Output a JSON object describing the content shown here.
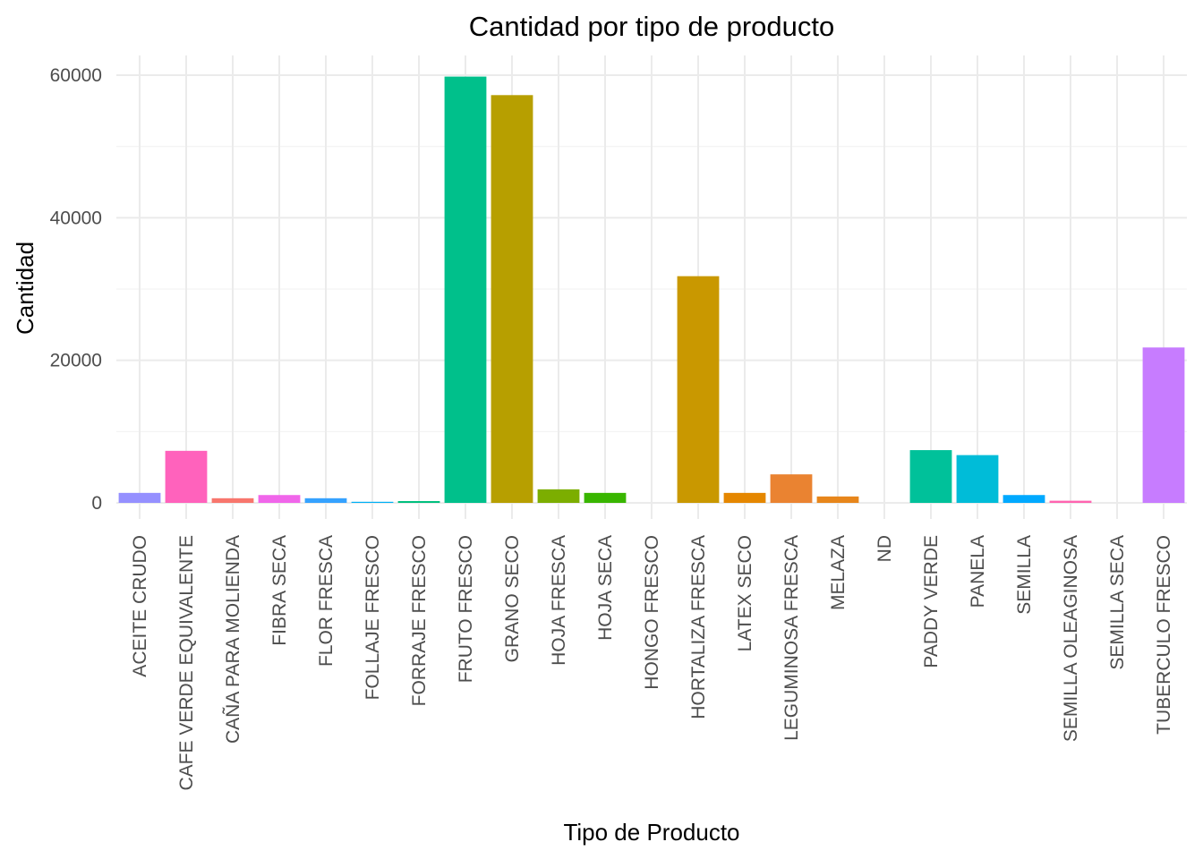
{
  "chart_data": {
    "type": "bar",
    "title": "Cantidad por tipo de producto",
    "xlabel": "Tipo de Producto",
    "ylabel": "Cantidad",
    "ylim": [
      -2500,
      62500
    ],
    "yticks": [
      0,
      20000,
      40000,
      60000
    ],
    "grid": true,
    "legend": "none",
    "categories": [
      "ACEITE CRUDO",
      "CAFE VERDE EQUIVALENTE",
      "CAÑA PARA MOLIENDA",
      "FIBRA SECA",
      "FLOR FRESCA",
      "FOLLAJE FRESCO",
      "FORRAJE FRESCO",
      "FRUTO FRESCO",
      "GRANO SECO",
      "HOJA FRESCA",
      "HOJA SECA",
      "HONGO FRESCO",
      "HORTALIZA FRESCA",
      "LATEX SECO",
      "LEGUMINOSA FRESCA",
      "MELAZA",
      "ND",
      "PADDY VERDE",
      "PANELA",
      "SEMILLA",
      "SEMILLA OLEAGINOSA",
      "SEMILLA SECA",
      "TUBERCULO FRESCO"
    ],
    "values": [
      1400,
      7300,
      650,
      1100,
      650,
      150,
      250,
      59800,
      57200,
      1900,
      1400,
      0,
      31800,
      1400,
      4000,
      900,
      0,
      7400,
      6700,
      1100,
      300,
      0,
      21800
    ],
    "colors": [
      "#9590FF",
      "#FF62BC",
      "#F8766D",
      "#F066EA",
      "#35A2FF",
      "#00B0F6",
      "#00BF7D",
      "#00C08B",
      "#B79F00",
      "#7CAE00",
      "#39B600",
      "#00C1AA",
      "#C99800",
      "#E58700",
      "#EA8331",
      "#E7861B",
      "#A3A500",
      "#00C19A",
      "#00BCD8",
      "#00A9FF",
      "#FF64B0",
      "#DB72FB",
      "#C77CFF"
    ]
  }
}
